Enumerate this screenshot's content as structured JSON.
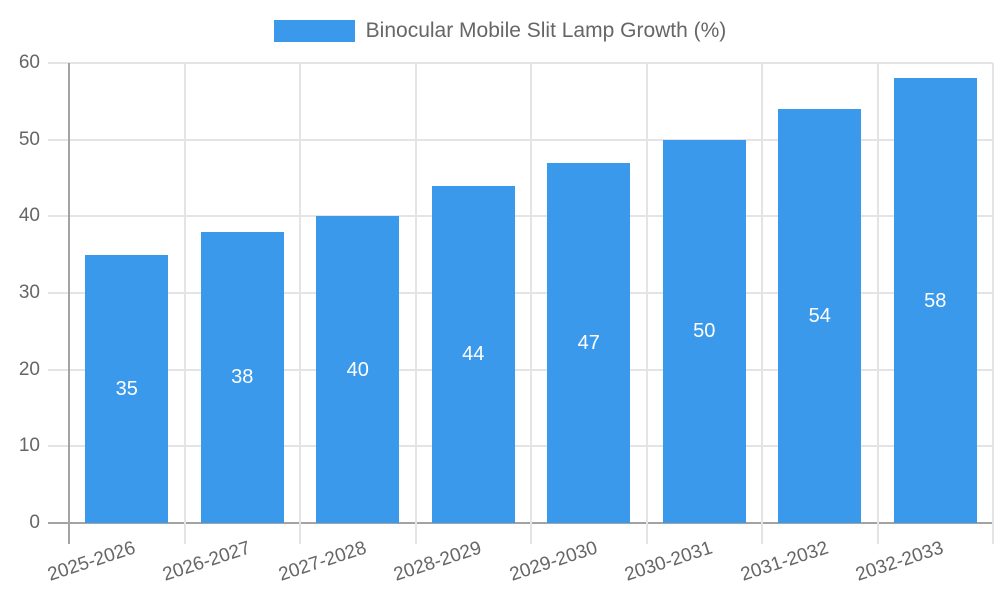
{
  "chart_data": {
    "type": "bar",
    "title": "Binocular Mobile Slit Lamp Growth (%)",
    "legend": {
      "label": "Binocular Mobile Slit Lamp Growth (%)",
      "position": "top"
    },
    "categories": [
      "2025-2026",
      "2026-2027",
      "2027-2028",
      "2028-2029",
      "2029-2030",
      "2030-2031",
      "2031-2032",
      "2032-2033"
    ],
    "series": [
      {
        "name": "Binocular Mobile Slit Lamp Growth (%)",
        "values": [
          35,
          38,
          40,
          44,
          47,
          50,
          54,
          58
        ]
      }
    ],
    "xlabel": "",
    "ylabel": "",
    "ylim": [
      0,
      60
    ],
    "y_ticks": [
      0,
      10,
      20,
      30,
      40,
      50,
      60
    ],
    "grid": true,
    "value_labels_shown": true,
    "colors": {
      "bar": "#3B99EB",
      "bar_value_label": "#FFFFFF",
      "axis_text": "#666666",
      "grid_line": "#E4E4E4",
      "axis_line": "#A3A3A3",
      "background": "#FFFFFF"
    }
  }
}
